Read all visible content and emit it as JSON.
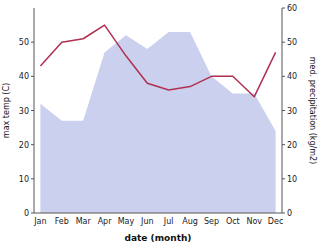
{
  "chart_data": {
    "type": "line",
    "categories": [
      "Jan",
      "Feb",
      "Mar",
      "Apr",
      "May",
      "Jun",
      "Jul",
      "Aug",
      "Sep",
      "Oct",
      "Nov",
      "Dec"
    ],
    "series": [
      {
        "type": "area",
        "axis": "y2",
        "color": "#b8c0e8",
        "values": [
          32,
          27,
          27,
          47,
          52,
          48,
          53,
          53,
          40,
          35,
          35,
          24
        ]
      },
      {
        "type": "line",
        "color": "#b03050",
        "values": [
          43,
          50,
          51,
          55,
          46,
          38,
          36,
          37,
          40,
          40,
          34,
          47
        ]
      }
    ],
    "xlabel": "date (month)",
    "ylabel": "max temp (C)",
    "y2label": "med. precipitation (kg/m2)",
    "ylim": [
      0,
      60
    ],
    "yticks": [
      0,
      10,
      20,
      30,
      40,
      50
    ],
    "y2lim": [
      0,
      60
    ],
    "y2ticks": [
      0,
      10,
      20,
      30,
      40,
      50,
      60
    ],
    "grid": false
  }
}
